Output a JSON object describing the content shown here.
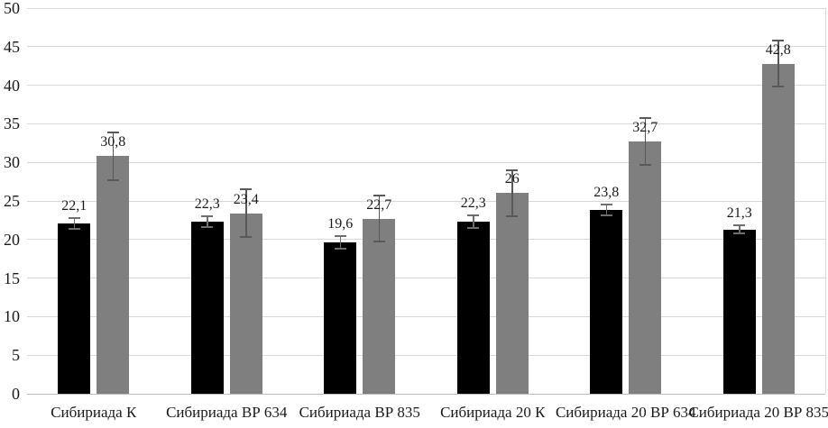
{
  "chart_data": {
    "type": "bar",
    "title": "",
    "xlabel": "",
    "ylabel": "",
    "categories": [
      "Сибириада К",
      "Сибириада ВР 634",
      "Сибириада ВР 835",
      "Сибириада 20 К",
      "Сибириада 20 ВР 634",
      "Сибириада 20 ВР 835"
    ],
    "series": [
      {
        "name": "black-series",
        "color": "#000000",
        "values": [
          22.1,
          22.3,
          19.6,
          22.3,
          23.8,
          21.3
        ],
        "labels": [
          "22,1",
          "22,3",
          "19,6",
          "22,3",
          "23,8",
          "21,3"
        ],
        "errors": [
          0.7,
          0.7,
          0.8,
          0.8,
          0.7,
          0.5
        ],
        "error_color": "#6e6e6e"
      },
      {
        "name": "gray-series",
        "color": "#7f7f7f",
        "values": [
          30.8,
          23.4,
          22.7,
          26,
          32.7,
          42.8
        ],
        "labels": [
          "30,8",
          "23,4",
          "22,7",
          "26",
          "32,7",
          "42,8"
        ],
        "errors": [
          3.1,
          3.1,
          3.0,
          3.0,
          3.0,
          3.0
        ],
        "error_color": "#595959"
      }
    ],
    "y_axis": {
      "min": 0,
      "max": 50,
      "step": 5,
      "tick_labels": [
        "0",
        "5",
        "10",
        "15",
        "20",
        "25",
        "30",
        "35",
        "40",
        "45",
        "50"
      ]
    },
    "ylim": [
      0,
      50
    ],
    "grid": true,
    "gridline_color": "#d9d9d9",
    "axis_line_color": "#bfbfbf",
    "text_color": "#1a1a1a",
    "legend": "none"
  }
}
